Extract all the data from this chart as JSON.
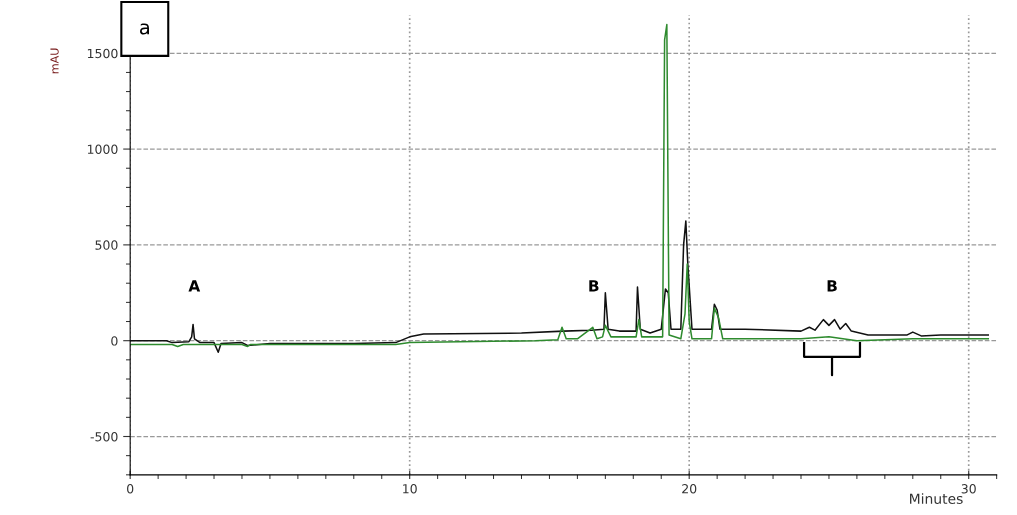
{
  "chart_data": {
    "type": "line",
    "xlabel": "Minutes",
    "ylabel": "mAU",
    "xlim": [
      0,
      31
    ],
    "xticks": [
      0,
      10,
      20,
      30
    ],
    "ylim": [
      -700,
      1700
    ],
    "yticks": [
      -500,
      0,
      500,
      1000,
      1500
    ],
    "grid": true,
    "marker": "none",
    "line_style": "solid",
    "series": [
      {
        "color": "#111111",
        "x": [
          0,
          1.3,
          1.5,
          2.1,
          2.2,
          2.25,
          2.3,
          2.5,
          3.0,
          3.15,
          3.25,
          4.0,
          4.2,
          5.0,
          8.0,
          9.5,
          10.0,
          10.5,
          14,
          15.5,
          16.5,
          16.95,
          17.0,
          17.1,
          17.5,
          18.1,
          18.15,
          18.25,
          18.6,
          19.0,
          19.15,
          19.25,
          19.35,
          19.7,
          19.8,
          19.88,
          19.95,
          20.1,
          20.8,
          20.9,
          21.0,
          21.1,
          22,
          24.0,
          24.3,
          24.5,
          24.8,
          25.0,
          25.2,
          25.4,
          25.6,
          25.8,
          26.4,
          27,
          27.8,
          28.0,
          28.3,
          29.0,
          30.7
        ],
        "values": [
          0,
          0,
          -10,
          -5,
          20,
          85,
          10,
          -10,
          -10,
          -60,
          -15,
          -10,
          -25,
          -15,
          -15,
          -10,
          20,
          35,
          40,
          50,
          55,
          60,
          250,
          60,
          50,
          50,
          280,
          60,
          40,
          60,
          270,
          250,
          60,
          60,
          500,
          625,
          400,
          60,
          60,
          190,
          160,
          60,
          60,
          50,
          70,
          55,
          110,
          80,
          110,
          60,
          90,
          50,
          30,
          30,
          30,
          45,
          25,
          30,
          30
        ]
      },
      {
        "color": "#2e8b2e",
        "x": [
          0,
          1.5,
          1.7,
          1.9,
          4.0,
          4.2,
          4.3,
          9.5,
          10,
          14.5,
          15.3,
          15.45,
          15.6,
          16.0,
          16.55,
          16.7,
          16.9,
          17.0,
          17.2,
          18.1,
          18.2,
          18.3,
          19.05,
          19.12,
          19.2,
          19.28,
          19.7,
          19.85,
          19.93,
          20.0,
          20.1,
          20.8,
          20.9,
          21.05,
          21.2,
          24,
          25,
          26,
          28,
          30.7
        ],
        "values": [
          -20,
          -20,
          -30,
          -20,
          -20,
          -30,
          -20,
          -20,
          -10,
          0,
          5,
          70,
          10,
          10,
          70,
          10,
          20,
          80,
          20,
          20,
          110,
          20,
          20,
          1570,
          1650,
          30,
          10,
          140,
          400,
          100,
          10,
          10,
          170,
          120,
          10,
          10,
          20,
          0,
          10,
          10
        ]
      }
    ],
    "annotations": [
      "a",
      "A",
      "B",
      "B"
    ]
  }
}
